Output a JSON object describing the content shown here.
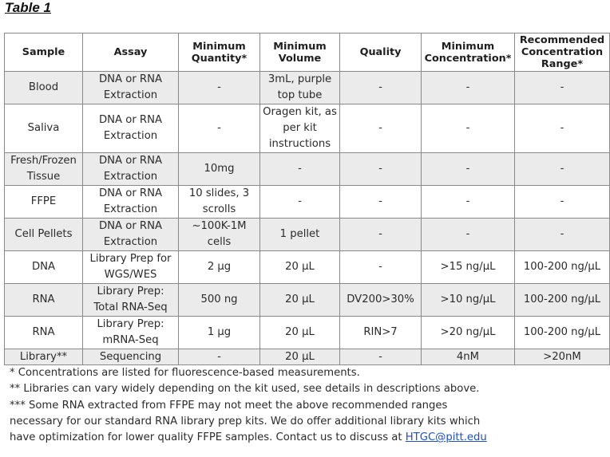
{
  "title": "Table 1",
  "headers": [
    "Sample",
    "Assay",
    "Minimum Quantity*",
    "Minimum Volume",
    "Quality",
    "Minimum Concentration*",
    "Recommended Concentration Range*"
  ],
  "rows": [
    [
      "Blood",
      "DNA or RNA Extraction",
      "-",
      "3mL, purple top tube",
      "-",
      "-",
      "-"
    ],
    [
      "Saliva",
      "DNA or RNA Extraction",
      "-",
      "Oragen kit, as per kit instructions",
      "-",
      "-",
      "-"
    ],
    [
      "Fresh/Frozen Tissue",
      "DNA or RNA Extraction",
      "10mg",
      "-",
      "-",
      "-",
      "-"
    ],
    [
      "FFPE",
      "DNA or RNA Extraction",
      "10 slides, 3 scrolls",
      "-",
      "-",
      "-",
      "-"
    ],
    [
      "Cell Pellets",
      "DNA or RNA Extraction",
      "~100K-1M cells",
      "1 pellet",
      "-",
      "-",
      "-"
    ],
    [
      "DNA",
      "Library Prep for WGS/WES",
      "2 µg",
      "20 µL",
      "-",
      ">15 ng/µL",
      "100-200 ng/µL"
    ],
    [
      "RNA",
      "Library Prep: Total RNA-Seq",
      "500 ng",
      "20 µL",
      "DV200>30%",
      ">10 ng/µL",
      "100-200 ng/µL"
    ],
    [
      "RNA",
      "Library Prep: mRNA-Seq",
      "1 µg",
      "20 µL",
      "RIN>7",
      ">20 ng/µL",
      "100-200 ng/µL"
    ],
    [
      "Library**",
      "Sequencing",
      "-",
      "20 µL",
      "-",
      "4nM",
      ">20nM"
    ]
  ],
  "notes": {
    "n1": "* Concentrations are listed for fluorescence-based measurements.",
    "n2": "** Libraries can vary widely depending on the kit used, see details in descriptions above.",
    "n3": "*** Some RNA extracted from FFPE may not meet the above recommended ranges",
    "n4": "necessary for our standard RNA library prep kits.  We do offer additional library kits which",
    "n5": "have optimization for lower quality FFPE samples.  Contact us to discuss at ",
    "email": "HTGC@pitt.edu"
  }
}
